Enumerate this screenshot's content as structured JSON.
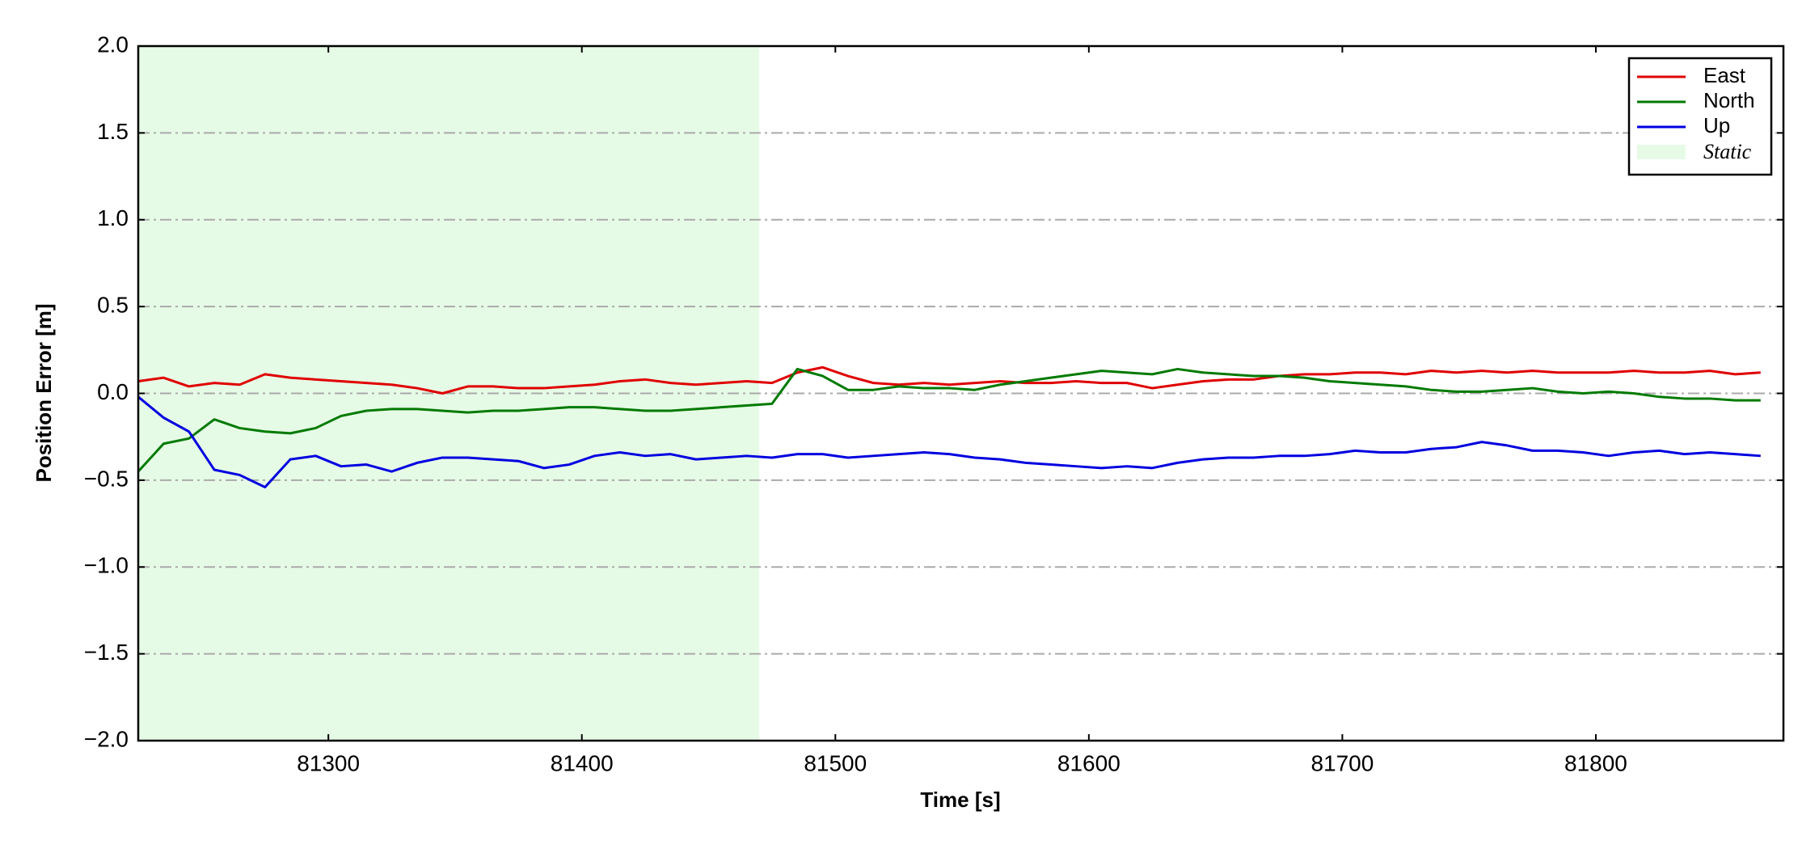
{
  "chart_data": {
    "type": "line",
    "xlabel": "Time [s]",
    "ylabel": "Position Error [m]",
    "x": [
      81225,
      81235,
      81245,
      81255,
      81265,
      81275,
      81285,
      81295,
      81305,
      81315,
      81325,
      81335,
      81345,
      81355,
      81365,
      81375,
      81385,
      81395,
      81405,
      81415,
      81425,
      81435,
      81445,
      81455,
      81465,
      81475,
      81485,
      81495,
      81505,
      81515,
      81525,
      81535,
      81545,
      81555,
      81565,
      81575,
      81585,
      81595,
      81605,
      81615,
      81625,
      81635,
      81645,
      81655,
      81665,
      81675,
      81685,
      81695,
      81705,
      81715,
      81725,
      81735,
      81745,
      81755,
      81765,
      81775,
      81785,
      81795,
      81805,
      81815,
      81825,
      81835,
      81845,
      81855,
      81865
    ],
    "series": [
      {
        "name": "East",
        "color": "#e00000",
        "values": [
          0.07,
          0.09,
          0.04,
          0.06,
          0.05,
          0.11,
          0.09,
          0.08,
          0.07,
          0.06,
          0.05,
          0.03,
          0.0,
          0.04,
          0.04,
          0.03,
          0.03,
          0.04,
          0.05,
          0.07,
          0.08,
          0.06,
          0.05,
          0.06,
          0.07,
          0.06,
          0.12,
          0.15,
          0.1,
          0.06,
          0.05,
          0.06,
          0.05,
          0.06,
          0.07,
          0.06,
          0.06,
          0.07,
          0.06,
          0.06,
          0.03,
          0.05,
          0.07,
          0.08,
          0.08,
          0.1,
          0.11,
          0.11,
          0.12,
          0.12,
          0.11,
          0.13,
          0.12,
          0.13,
          0.12,
          0.13,
          0.12,
          0.12,
          0.12,
          0.13,
          0.12,
          0.12,
          0.13,
          0.11,
          0.12
        ]
      },
      {
        "name": "North",
        "color": "#007a00",
        "values": [
          -0.45,
          -0.29,
          -0.26,
          -0.15,
          -0.2,
          -0.22,
          -0.23,
          -0.2,
          -0.13,
          -0.1,
          -0.09,
          -0.09,
          -0.1,
          -0.11,
          -0.1,
          -0.1,
          -0.09,
          -0.08,
          -0.08,
          -0.09,
          -0.1,
          -0.1,
          -0.09,
          -0.08,
          -0.07,
          -0.06,
          0.14,
          0.1,
          0.02,
          0.02,
          0.04,
          0.03,
          0.03,
          0.02,
          0.05,
          0.07,
          0.09,
          0.11,
          0.13,
          0.12,
          0.11,
          0.14,
          0.12,
          0.11,
          0.1,
          0.1,
          0.09,
          0.07,
          0.06,
          0.05,
          0.04,
          0.02,
          0.01,
          0.01,
          0.02,
          0.03,
          0.01,
          0.0,
          0.01,
          0.0,
          -0.02,
          -0.03,
          -0.03,
          -0.04,
          -0.04
        ]
      },
      {
        "name": "Up",
        "color": "#0000e0",
        "values": [
          -0.02,
          -0.14,
          -0.22,
          -0.44,
          -0.47,
          -0.54,
          -0.38,
          -0.36,
          -0.42,
          -0.41,
          -0.45,
          -0.4,
          -0.37,
          -0.37,
          -0.38,
          -0.39,
          -0.43,
          -0.41,
          -0.36,
          -0.34,
          -0.36,
          -0.35,
          -0.38,
          -0.37,
          -0.36,
          -0.37,
          -0.35,
          -0.35,
          -0.37,
          -0.36,
          -0.35,
          -0.34,
          -0.35,
          -0.37,
          -0.38,
          -0.4,
          -0.41,
          -0.42,
          -0.43,
          -0.42,
          -0.43,
          -0.4,
          -0.38,
          -0.37,
          -0.37,
          -0.36,
          -0.36,
          -0.35,
          -0.33,
          -0.34,
          -0.34,
          -0.32,
          -0.31,
          -0.28,
          -0.3,
          -0.33,
          -0.33,
          -0.34,
          -0.36,
          -0.34,
          -0.33,
          -0.35,
          -0.34,
          -0.35,
          -0.36
        ]
      }
    ],
    "span": {
      "name": "Static",
      "color": "#e6fbe6",
      "x": [
        81225,
        81470
      ]
    },
    "xlim": [
      81225,
      81874
    ],
    "xticks": [
      81300,
      81400,
      81500,
      81600,
      81700,
      81800
    ],
    "ylim": [
      -2,
      2
    ],
    "yticks": [
      {
        "value": -2,
        "label": "−2.0"
      },
      {
        "value": -1.5,
        "label": "−1.5"
      },
      {
        "value": -1,
        "label": "−1.0"
      },
      {
        "value": -0.5,
        "label": "−0.5"
      },
      {
        "value": 0,
        "label": "0.0"
      },
      {
        "value": 0.5,
        "label": "0.5"
      },
      {
        "value": 1,
        "label": "1.0"
      },
      {
        "value": 1.5,
        "label": "1.5"
      },
      {
        "value": 2,
        "label": "2.0"
      }
    ],
    "grid": "y",
    "legend": "upper right"
  }
}
